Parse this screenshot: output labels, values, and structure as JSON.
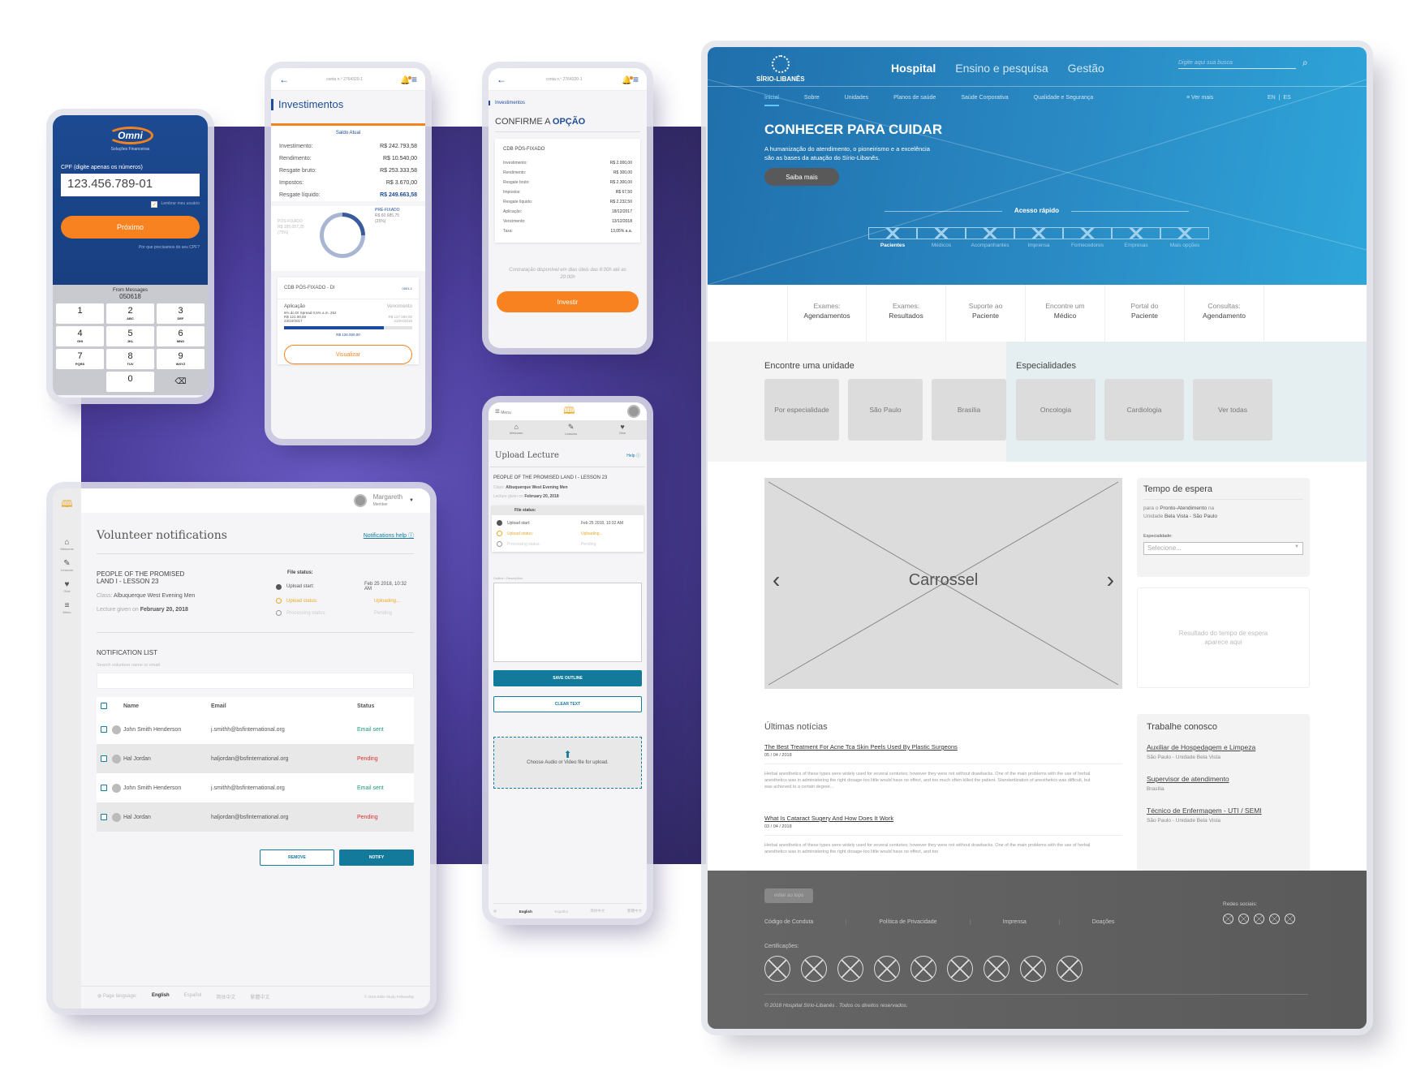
{
  "colors": {
    "omni_blue": "#1c4a92",
    "orange": "#f7821f",
    "bsf_teal": "#137a9b",
    "bsf_gold": "#e8a928",
    "sirio_blue": "#2a8ac4",
    "sent_green": "#1a9a7a",
    "pending_red": "#e03030"
  },
  "omni": {
    "logo": "Omni",
    "tagline": "Soluções Financeiras",
    "cpf_label": "CPF (digite apenas os números)",
    "cpf_value": "123.456.789-01",
    "remember_label": "Lembrar meu usuário",
    "remember_checked": true,
    "next_button": "Próximo",
    "why_link": "Por que precisamos do seu CPF?",
    "sms_from": "From Messages",
    "sms_code": "050618",
    "keys": [
      {
        "d": "1",
        "l": ""
      },
      {
        "d": "2",
        "l": "ABC"
      },
      {
        "d": "3",
        "l": "DEF"
      },
      {
        "d": "4",
        "l": "GHI"
      },
      {
        "d": "5",
        "l": "JKL"
      },
      {
        "d": "6",
        "l": "MNO"
      },
      {
        "d": "7",
        "l": "PQRS"
      },
      {
        "d": "8",
        "l": "TUV"
      },
      {
        "d": "9",
        "l": "WXYZ"
      },
      {
        "d": "0",
        "l": ""
      }
    ]
  },
  "investments": {
    "account": "conta n.º 2764320-1",
    "title": "Investimentos",
    "balance_label": "Saldo Atual",
    "rows": [
      {
        "k": "Investimento:",
        "v": "R$ 242.793,58"
      },
      {
        "k": "Rendimento:",
        "v": "R$ 10.540,00"
      },
      {
        "k": "Resgate bruto:",
        "v": "R$ 253.333,58"
      },
      {
        "k": "Impostos:",
        "v": "R$ 3.670,00"
      },
      {
        "k": "Resgate líquido:",
        "v": "R$ 249.663,58"
      }
    ],
    "pos": {
      "label": "PÓS-FIXADO",
      "value": "R$ 185.057,25",
      "pct": "(75%)"
    },
    "pre": {
      "label": "PRÉ-FIXADO",
      "value": "R$ 60.685,75",
      "pct": "(25%)"
    },
    "pre_share": 25,
    "card": {
      "title": "CDB PÓS-FIXADO - DI",
      "code": "0001-1",
      "aplicacao_label": "Aplicação",
      "vencimento_label": "Vencimento",
      "desc": "6% do DI Spread 0,5% a.m. 252",
      "applied": "R$ 121.00,00",
      "applied_date": "23/10/2017",
      "due": "R$ 127.000,00",
      "due_date": "23/04/2018",
      "current": "R$ 126.000,00",
      "progress": 78
    },
    "view_button": "Visualizar"
  },
  "confirm": {
    "account": "conta n.º 2764320-1",
    "crumb": "Investimentos",
    "title_a": "CONFIRME A",
    "title_b": "OPÇÃO",
    "card_title": "CDB PÓS-FIXADO",
    "rows": [
      {
        "k": "Investimento:",
        "v": "R$ 2.000,00"
      },
      {
        "k": "Rendimento:",
        "v": "R$ 300,00"
      },
      {
        "k": "Resgate bruto:",
        "v": "R$ 2.300,00"
      },
      {
        "k": "Impostos:",
        "v": "R$ 67,50"
      },
      {
        "k": "Resgate líquido:",
        "v": "R$ 2.232,50"
      },
      {
        "k": "Aplicação:",
        "v": "18/12/2017"
      },
      {
        "k": "Vencimento:",
        "v": "13/12/2018"
      },
      {
        "k": "Taxa:",
        "v": "13,05% a.a."
      }
    ],
    "note": "Contratação disponível em dias úteis das 8:00h até as 20:00h",
    "invest_button": "Investir"
  },
  "bsf_common": {
    "menu": "Menu",
    "tabs": [
      "Welcome",
      "Lessons",
      "Give"
    ],
    "lesson": "PEOPLE OF THE PROMISED LAND I - LESSON 23",
    "class_label": "Class:",
    "class_value": "Albuquerque West Evening Men",
    "given_label": "Lecture given on",
    "given_value": "February 20, 2018",
    "file_status": "File status:",
    "status": [
      {
        "k": "Upload start:",
        "v": "Feb 25 2018, 10:32 AM",
        "state": "done"
      },
      {
        "k": "Upload status:",
        "v": "Uploading...",
        "state": "current"
      },
      {
        "k": "Processing status:",
        "v": "Pending",
        "state": "todo"
      }
    ],
    "languages_label": "Page language:",
    "languages": [
      "English",
      "Español",
      "简体中文",
      "繁體中文"
    ]
  },
  "upload": {
    "title": "Upload Lecture",
    "help": "Help",
    "outline_label": "Outline / Description",
    "save_button": "SAVE OUTLINE",
    "clear_button": "CLEAR TEXT",
    "drop_text": "Choose Audio or Video file for upload."
  },
  "volunteer": {
    "user": "Margareth",
    "role": "Member",
    "side": [
      "Welcome",
      "Lessons",
      "Give",
      "Menu"
    ],
    "title": "Volunteer notifications",
    "help": "Notifications help",
    "lesson_line1": "PEOPLE OF THE PROMISED",
    "lesson_line2": "LAND I - LESSON 23",
    "list_title": "NOTIFICATION LIST",
    "search_label": "Search volunteer name or email",
    "search_value": "",
    "columns": [
      "Name",
      "Email",
      "Status"
    ],
    "rows": [
      {
        "name": "John Smith Henderson",
        "email": "j.smithh@bsfinternational.org",
        "status": "Email sent"
      },
      {
        "name": "Hal Jordan",
        "email": "haljordan@bsfinternational.org",
        "status": "Pending"
      },
      {
        "name": "John Smith Henderson",
        "email": "j.smithh@bsfinternational.org",
        "status": "Email sent"
      },
      {
        "name": "Hal Jordan",
        "email": "haljordan@bsfinternational.org",
        "status": "Pending"
      }
    ],
    "remove_button": "REMOVE",
    "notify_button": "NOTIFY",
    "copyright": "© 2018 Bible Study Fellowship"
  },
  "sirio": {
    "logo": "SÍRIO-LIBANÊS",
    "main_nav": [
      "Hospital",
      "Ensino e pesquisa",
      "Gestão"
    ],
    "search_placeholder": "Digite aqui sua busca",
    "sub_nav": [
      "Inicial",
      "Sobre",
      "Unidades",
      "Planos de saúde",
      "Saúde Corporativa",
      "Qualidade e Segurança"
    ],
    "ver_mais": "Ver mais",
    "langs": [
      "EN",
      "|",
      "ES"
    ],
    "hero_title": "CONHECER PARA CUIDAR",
    "hero_text": "A humanização do atendimento, o pioneirismo e a excelência são as bases da atuação do Sírio-Libanês.",
    "hero_button": "Saiba mais",
    "quick_title": "Acesso rápido",
    "quick": [
      "Pacientes",
      "Médicos",
      "Acompanhantes",
      "Imprensa",
      "Fornecedores",
      "Empresas",
      "Mais opções"
    ],
    "links": [
      {
        "a": "Exames:",
        "b": "Agendamentos"
      },
      {
        "a": "Exames:",
        "b": "Resultados"
      },
      {
        "a": "Suporte ao",
        "b": "Paciente"
      },
      {
        "a": "Encontre um",
        "b": "Médico"
      },
      {
        "a": "Portal do",
        "b": "Paciente"
      },
      {
        "a": "Consultas:",
        "b": "Agendamento"
      }
    ],
    "unit_title": "Encontre uma unidade",
    "units": [
      "Por especialidade",
      "São Paulo",
      "Brasília"
    ],
    "spec_title": "Especialidades",
    "specs": [
      "Oncologia",
      "Cardiologia",
      "Ver todas"
    ],
    "carousel": "Carrossel",
    "wait_title": "Tempo de espera",
    "wait_p1": "para o",
    "wait_b1": "Pronto-Atendimento",
    "wait_p2": "na",
    "wait_p3": "Unidade",
    "wait_b2": "Bela Vista - São Paulo",
    "spec_label": "Especialidade:",
    "spec_select": "Selecione...",
    "wait_result": "Resultado do tempo de espera aparece aqui",
    "news_title": "Últimas notícias",
    "news": [
      {
        "title": "The Best Treatment For Acne Tca Skin Peels Used By Plastic Surgeons",
        "date": "05 / 04 / 2018",
        "excerpt": "Herbal anesthetics of these types were widely used for several centuries; however they were not without drawbacks. One of the main problems with the use of herbal anesthetics was in administering the right dosage-too little would have no effect, and too much often killed the patient. Standardization of anesthetics was difficult, but was achieved to a certain degree..."
      },
      {
        "title": "What Is Cataract Sugery And How Does It Work",
        "date": "03 / 04 / 2018",
        "excerpt": "Herbal anesthetics of these types were widely used for several centuries; however they were not without drawbacks. One of the main problems with the use of herbal anesthetics was in administering the right dosage-too little would have no effect, and too"
      }
    ],
    "jobs_title": "Trabalhe conosco",
    "jobs": [
      {
        "t": "Auxiliar de Hospedagem e Limpeza",
        "l": "São Paulo - Unidade Bela Vista"
      },
      {
        "t": "Supervisor de atendimento",
        "l": "Brasília"
      },
      {
        "t": "Técnico de Enfermagem - UTI / SEMI",
        "l": "São Paulo - Unidade Bela Vista"
      }
    ],
    "to_top": "voltar ao topo",
    "footer_links": [
      "Código de Conduta",
      "Política de Privacidade",
      "Imprensa",
      "Doações"
    ],
    "social_label": "Redes sociais:",
    "cert_label": "Certificações:",
    "copyright": "© 2018 Hospital Sírio-Libanês . Todos os direitos reservados."
  }
}
